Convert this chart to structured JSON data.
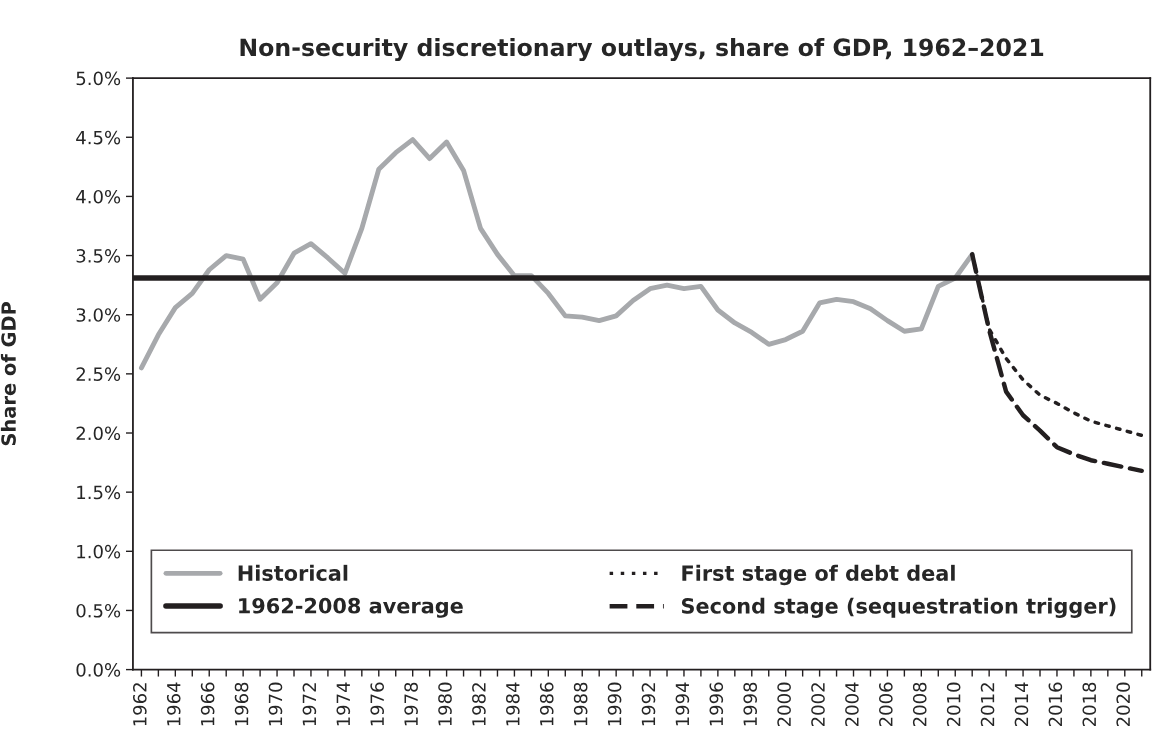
{
  "chart_data": {
    "type": "line",
    "title": "Non-security discretionary outlays, share of GDP, 1962–2021",
    "ylabel": "Share of GDP",
    "series": [
      {
        "name": "Historical",
        "color": "#a7a9ac",
        "line_style": "solid",
        "x": [
          1962,
          1963,
          1964,
          1965,
          1966,
          1967,
          1968,
          1969,
          1970,
          1971,
          1972,
          1973,
          1974,
          1975,
          1976,
          1977,
          1978,
          1979,
          1980,
          1981,
          1982,
          1983,
          1984,
          1985,
          1986,
          1987,
          1988,
          1989,
          1990,
          1991,
          1992,
          1993,
          1994,
          1995,
          1996,
          1997,
          1998,
          1999,
          2000,
          2001,
          2002,
          2003,
          2004,
          2005,
          2006,
          2007,
          2008,
          2009,
          2010,
          2011
        ],
        "values": [
          2.55,
          2.83,
          3.06,
          3.18,
          3.38,
          3.5,
          3.47,
          3.13,
          3.27,
          3.52,
          3.6,
          3.48,
          3.35,
          3.73,
          4.23,
          4.37,
          4.48,
          4.32,
          4.46,
          4.22,
          3.73,
          3.51,
          3.33,
          3.33,
          3.18,
          2.99,
          2.98,
          2.95,
          2.99,
          3.12,
          3.22,
          3.25,
          3.22,
          3.24,
          3.04,
          2.93,
          2.85,
          2.75,
          2.79,
          2.86,
          3.1,
          3.13,
          3.11,
          3.05,
          2.95,
          2.86,
          2.88,
          3.24,
          3.31,
          3.51
        ]
      },
      {
        "name": "First stage of debt deal",
        "color": "#231f20",
        "line_style": "dotted",
        "x": [
          2011,
          2012,
          2013,
          2014,
          2015,
          2016,
          2017,
          2018,
          2019,
          2020,
          2021
        ],
        "values": [
          3.51,
          2.88,
          2.63,
          2.45,
          2.32,
          2.25,
          2.17,
          2.1,
          2.06,
          2.02,
          1.98
        ]
      },
      {
        "name": "Second stage (sequestration trigger)",
        "color": "#231f20",
        "line_style": "dashed",
        "x": [
          2011,
          2012,
          2013,
          2014,
          2015,
          2016,
          2017,
          2018,
          2019,
          2020,
          2021
        ],
        "values": [
          3.51,
          2.87,
          2.35,
          2.15,
          2.02,
          1.88,
          1.82,
          1.77,
          1.74,
          1.71,
          1.68
        ]
      }
    ],
    "ref_lines": [
      {
        "axis": "y",
        "value": 3.31,
        "label": "1962-2008 average",
        "color": "#231f20",
        "line_style": "solid"
      }
    ],
    "xlim": [
      1961.5,
      2021.5
    ],
    "xticks": [
      1962,
      {
        "value": 1963,
        "label": null
      },
      1964,
      {
        "value": 1965,
        "label": null
      },
      1966,
      {
        "value": 1967,
        "label": null
      },
      1968,
      {
        "value": 1969,
        "label": null
      },
      1970,
      {
        "value": 1971,
        "label": null
      },
      1972,
      {
        "value": 1973,
        "label": null
      },
      1974,
      {
        "value": 1975,
        "label": null
      },
      1976,
      {
        "value": 1977,
        "label": null
      },
      1978,
      {
        "value": 1979,
        "label": null
      },
      1980,
      {
        "value": 1981,
        "label": null
      },
      1982,
      {
        "value": 1983,
        "label": null
      },
      1984,
      {
        "value": 1985,
        "label": null
      },
      1986,
      {
        "value": 1987,
        "label": null
      },
      1988,
      {
        "value": 1989,
        "label": null
      },
      1990,
      {
        "value": 1991,
        "label": null
      },
      1992,
      {
        "value": 1993,
        "label": null
      },
      1994,
      {
        "value": 1995,
        "label": null
      },
      1996,
      {
        "value": 1997,
        "label": null
      },
      1998,
      {
        "value": 1999,
        "label": null
      },
      2000,
      {
        "value": 2001,
        "label": null
      },
      2002,
      {
        "value": 2003,
        "label": null
      },
      2004,
      {
        "value": 2005,
        "label": null
      },
      2006,
      {
        "value": 2007,
        "label": null
      },
      2008,
      {
        "value": 2009,
        "label": null
      },
      2010,
      {
        "value": 2011,
        "label": null
      },
      2012,
      {
        "value": 2013,
        "label": null
      },
      2014,
      {
        "value": 2015,
        "label": null
      },
      2016,
      {
        "value": 2017,
        "label": null
      },
      2018,
      {
        "value": 2019,
        "label": null
      },
      2020,
      {
        "value": 2021,
        "label": null
      }
    ],
    "ylim": [
      0,
      5
    ],
    "yticks": [
      {
        "value": 0,
        "label": "0.0%"
      },
      {
        "value": 0.5,
        "label": "0.5%"
      },
      {
        "value": 1,
        "label": "1.0%"
      },
      {
        "value": 1.5,
        "label": "1.5%"
      },
      {
        "value": 2,
        "label": "2.0%"
      },
      {
        "value": 2.5,
        "label": "2.5%"
      },
      {
        "value": 3,
        "label": "3.0%"
      },
      {
        "value": 3.5,
        "label": "3.5%"
      },
      {
        "value": 4,
        "label": "4.0%"
      },
      {
        "value": 4.5,
        "label": "4.5%"
      },
      {
        "value": 5,
        "label": "5.0%"
      }
    ],
    "grid": false,
    "legend": "bottom"
  }
}
